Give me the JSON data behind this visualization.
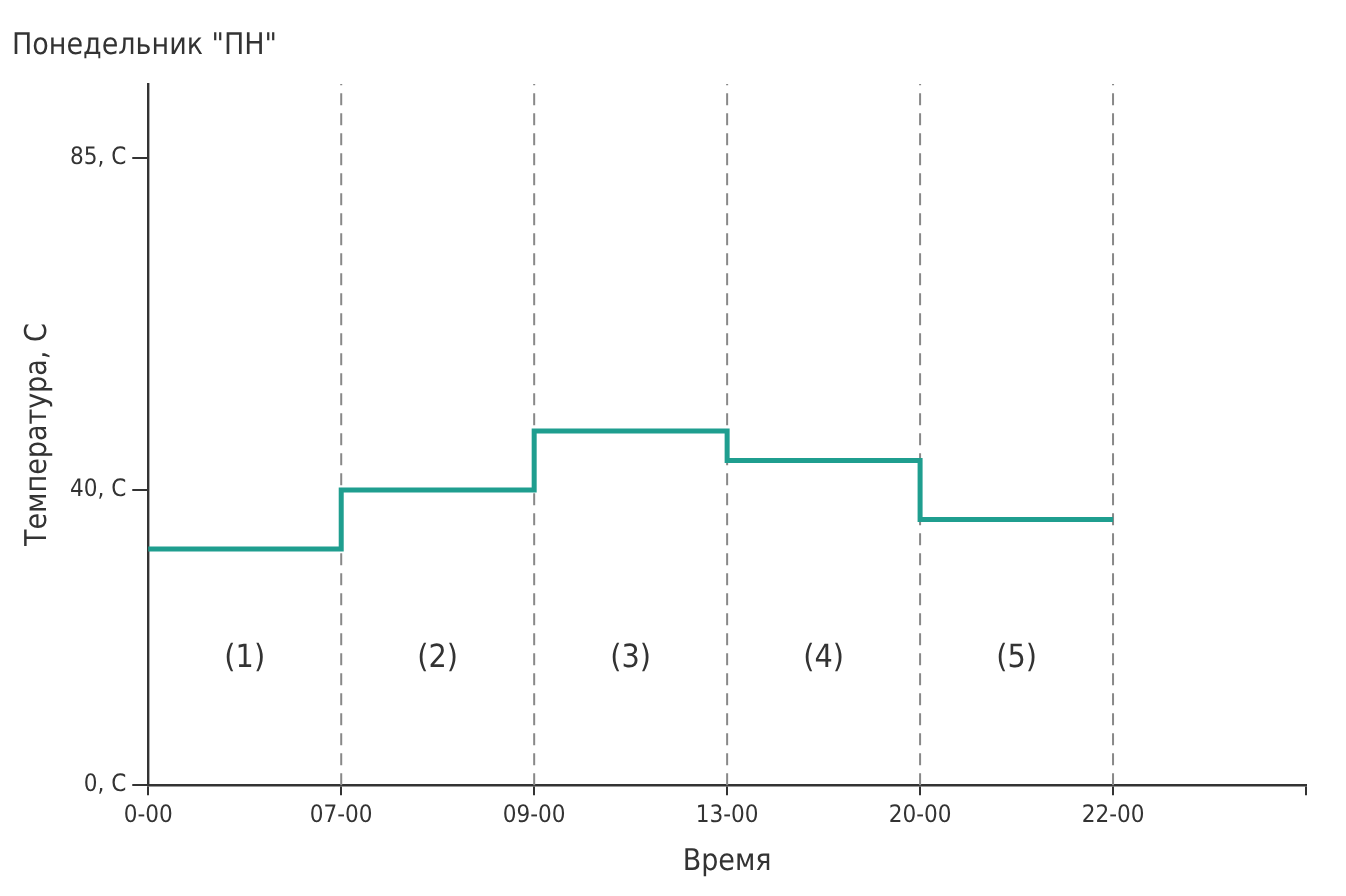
{
  "chart_data": {
    "type": "step",
    "title": "Понедельник \"ПН\"",
    "xlabel": "Время",
    "ylabel": "Температура, С",
    "categories": [
      "0-00",
      "07-00",
      "09-00",
      "13-00",
      "20-00",
      "22-00",
      null
    ],
    "series": [
      {
        "color": "#1f9e8f",
        "values": [
          32,
          40,
          48,
          44,
          36,
          36,
          null
        ]
      }
    ],
    "ylim": [
      0,
      95
    ],
    "yticks": [
      {
        "value": 0,
        "label": "0, С"
      },
      {
        "value": 40,
        "label": "40, С"
      },
      {
        "value": 85,
        "label": "85, С"
      }
    ],
    "ref_lines": [
      {
        "axis": "x",
        "value": "07-00",
        "color": "#888888",
        "line_style": "dashed"
      },
      {
        "axis": "x",
        "value": "09-00",
        "color": "#888888",
        "line_style": "dashed"
      },
      {
        "axis": "x",
        "value": "13-00",
        "color": "#888888",
        "line_style": "dashed"
      },
      {
        "axis": "x",
        "value": "20-00",
        "color": "#888888",
        "line_style": "dashed"
      },
      {
        "axis": "x",
        "value": "22-00",
        "color": "#888888",
        "line_style": "dashed"
      }
    ],
    "annotations": [
      "(1)",
      "(2)",
      "(3)",
      "(4)",
      "(5)"
    ],
    "grid": false,
    "legend": false,
    "marker": "none",
    "line_style": "solid"
  }
}
